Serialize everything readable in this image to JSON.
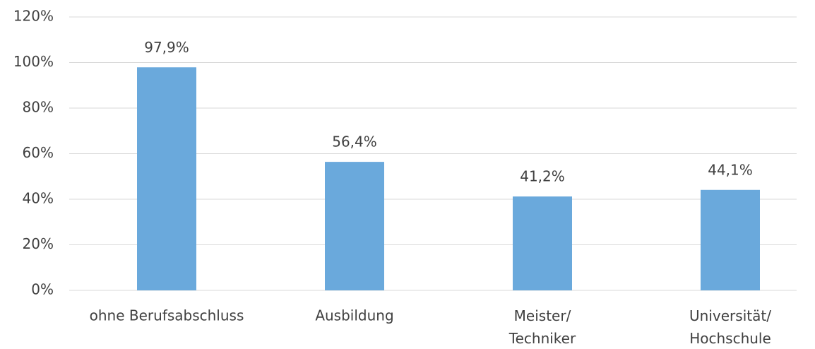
{
  "chart_data": {
    "type": "bar",
    "categories": [
      "ohne Berufsabschluss",
      "Ausbildung",
      "Meister/\nTechniker",
      "Universität/\nHochschule"
    ],
    "values": [
      97.9,
      56.4,
      41.2,
      44.1
    ],
    "value_labels": [
      "97,9%",
      "56,4%",
      "41,2%",
      "44,1%"
    ],
    "color": "#6aa9dc",
    "ylim": [
      0,
      120
    ],
    "yticks": [
      {
        "value": 0,
        "label": "0%"
      },
      {
        "value": 20,
        "label": "20%"
      },
      {
        "value": 40,
        "label": "40%"
      },
      {
        "value": 60,
        "label": "60%"
      },
      {
        "value": 80,
        "label": "80%"
      },
      {
        "value": 100,
        "label": "100%"
      },
      {
        "value": 120,
        "label": "120%"
      }
    ],
    "grid": true
  }
}
